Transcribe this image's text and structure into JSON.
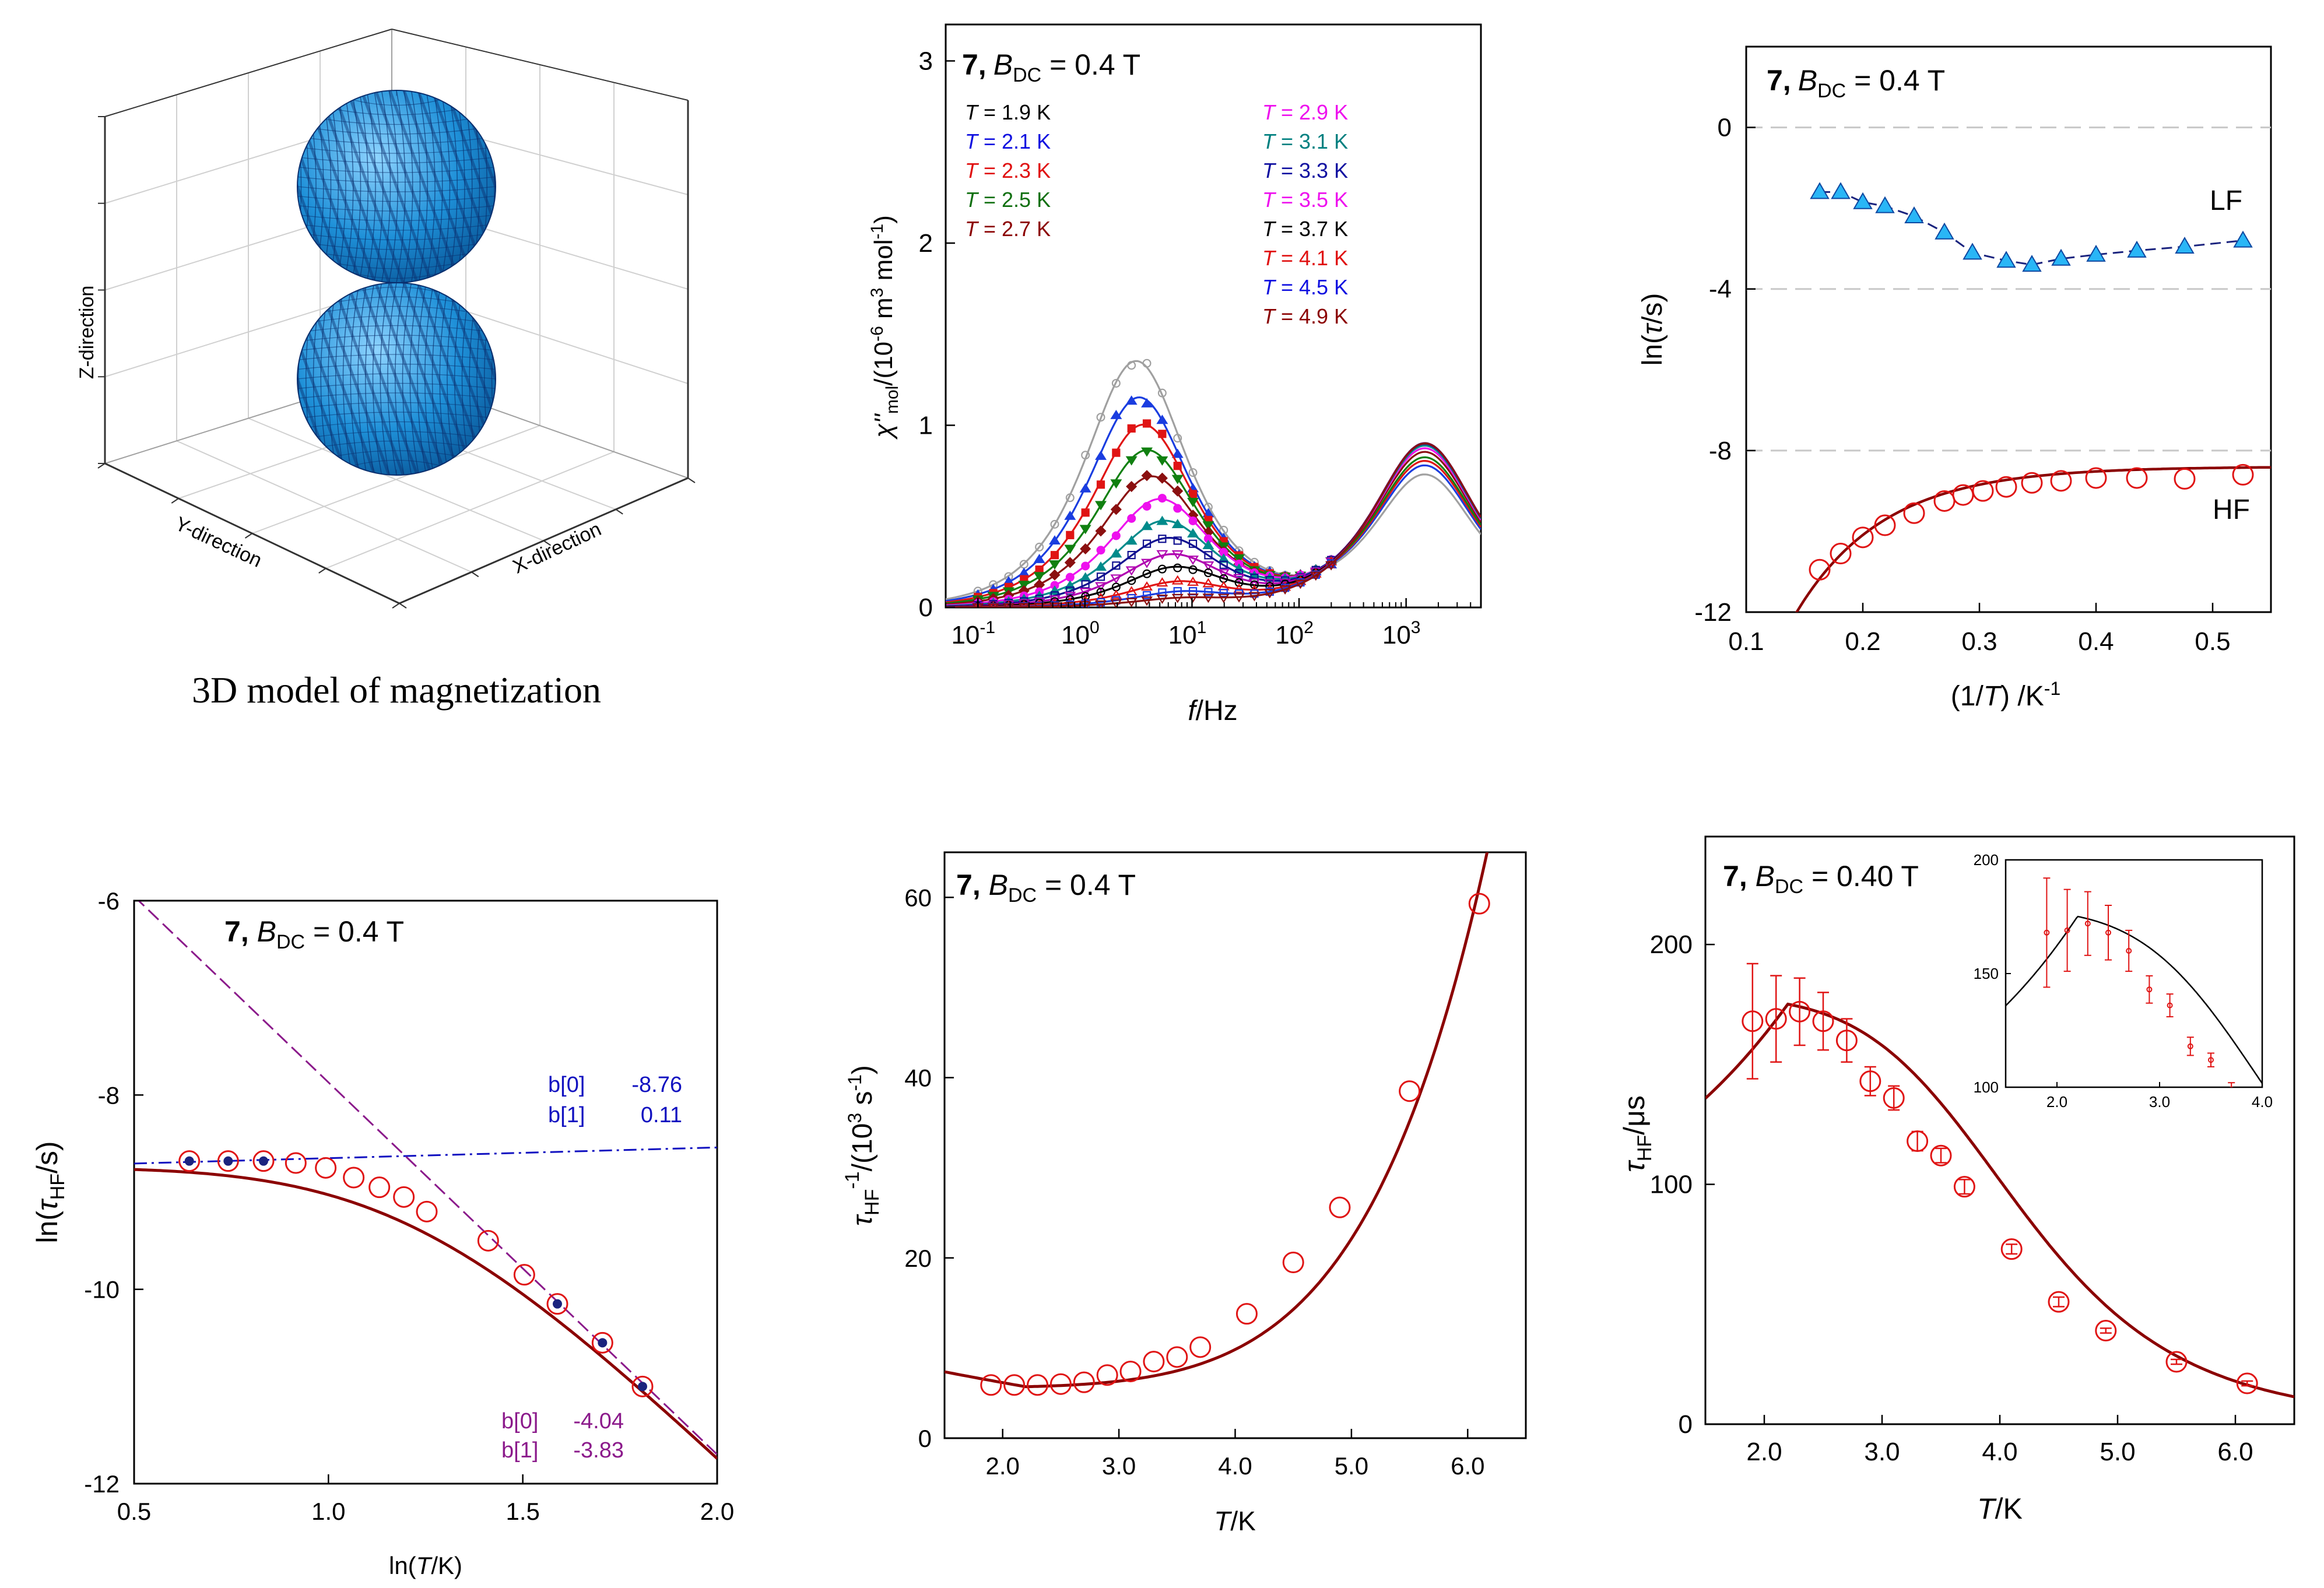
{
  "panel_3d": {
    "caption": "3D model of magnetization",
    "z_label": "Z-direction",
    "y_label": "Y-direction",
    "x_label": "X-direction",
    "surface_color": "#1e90d8",
    "mesh_color": "#0a2f6e"
  },
  "chart_data": [
    {
      "id": "chi",
      "type": "line",
      "title_num": "7,",
      "title_field": "B",
      "title_sub": "DC",
      "title_value": " = 0.4 T",
      "xlabel_italic": "f",
      "xlabel_rest": "/Hz",
      "ylabel": "χ''mol/(10⁻⁶ m³ mol⁻¹)",
      "ylabel_main": "χ''",
      "ylabel_sub": "mol",
      "ylabel_rest1": "/(10",
      "ylabel_sup1": "-6",
      "ylabel_rest2": " m",
      "ylabel_sup2": "3",
      "ylabel_rest3": " mol",
      "ylabel_sup3": "-1",
      "ylabel_rest4": ")",
      "xscale": "log",
      "xlim": [
        0.05,
        5000
      ],
      "ylim": [
        0,
        3.2
      ],
      "xticks": [
        {
          "base": "10",
          "exp": "-1"
        },
        {
          "base": "10",
          "exp": "0"
        },
        {
          "base": "10",
          "exp": "1"
        },
        {
          "base": "10",
          "exp": "2"
        },
        {
          "base": "10",
          "exp": "3"
        }
      ],
      "yticks": [
        "0",
        "1",
        "2",
        "3"
      ],
      "legend_left": [
        {
          "T": "T",
          "rest": " = 1.9 K",
          "color": "#000000"
        },
        {
          "T": "T",
          "rest": " = 2.1 K",
          "color": "#1010e0"
        },
        {
          "T": "T",
          "rest": " = 2.3 K",
          "color": "#e01010"
        },
        {
          "T": "T",
          "rest": " = 2.5 K",
          "color": "#107010"
        },
        {
          "T": "T",
          "rest": " = 2.7 K",
          "color": "#8b0000"
        }
      ],
      "legend_right": [
        {
          "T": "T",
          "rest": " = 2.9 K",
          "color": "#ee10ee"
        },
        {
          "T": "T",
          "rest": " = 3.1 K",
          "color": "#008080"
        },
        {
          "T": "T",
          "rest": " = 3.3 K",
          "color": "#1010a0"
        },
        {
          "T": "T",
          "rest": " = 3.5 K",
          "color": "#ee10ee"
        },
        {
          "T": "T",
          "rest": " = 3.7 K",
          "color": "#000000"
        },
        {
          "T": "T",
          "rest": " = 4.1 K",
          "color": "#e01010"
        },
        {
          "T": "T",
          "rest": " = 4.5 K",
          "color": "#1010e0"
        },
        {
          "T": "T",
          "rest": " = 4.9 K",
          "color": "#8b0000"
        }
      ],
      "series": [
        {
          "name": "1.9 K",
          "color": "#a0a0a0",
          "marker": "circle-open",
          "A1": 2.7,
          "f1": 3.0,
          "A2": 1.45,
          "f2": 1500
        },
        {
          "name": "2.1 K",
          "color": "#1a3de0",
          "marker": "triangle-up",
          "A1": 2.3,
          "f1": 3.2,
          "A2": 1.55,
          "f2": 1500
        },
        {
          "name": "2.3 K",
          "color": "#e01414",
          "marker": "square",
          "A1": 2.0,
          "f1": 3.5,
          "A2": 1.6,
          "f2": 1500
        },
        {
          "name": "2.5 K",
          "color": "#108010",
          "marker": "triangle-down",
          "A1": 1.72,
          "f1": 3.8,
          "A2": 1.64,
          "f2": 1500
        },
        {
          "name": "2.7 K",
          "color": "#8b1010",
          "marker": "diamond",
          "A1": 1.43,
          "f1": 4.2,
          "A2": 1.7,
          "f2": 1500
        },
        {
          "name": "2.9 K",
          "color": "#ee10ee",
          "marker": "circle",
          "A1": 1.18,
          "f1": 5.0,
          "A2": 1.74,
          "f2": 1500
        },
        {
          "name": "3.1 K",
          "color": "#008b8b",
          "marker": "triangle-up",
          "A1": 0.94,
          "f1": 5.5,
          "A2": 1.77,
          "f2": 1500
        },
        {
          "name": "3.3 K",
          "color": "#101090",
          "marker": "square-open",
          "A1": 0.75,
          "f1": 6.0,
          "A2": 1.79,
          "f2": 1500
        },
        {
          "name": "3.5 K",
          "color": "#b000b0",
          "marker": "triangle-down-open",
          "A1": 0.57,
          "f1": 6.5,
          "A2": 1.8,
          "f2": 1500
        },
        {
          "name": "3.7 K",
          "color": "#000000",
          "marker": "circle-open",
          "A1": 0.43,
          "f1": 7.0,
          "A2": 1.8,
          "f2": 1500
        },
        {
          "name": "4.1 K",
          "color": "#e01414",
          "marker": "triangle-up-open",
          "A1": 0.27,
          "f1": 7.5,
          "A2": 1.8,
          "f2": 1500
        },
        {
          "name": "4.5 K",
          "color": "#1a3de0",
          "marker": "square-open",
          "A1": 0.16,
          "f1": 8.0,
          "A2": 1.8,
          "f2": 1500
        },
        {
          "name": "4.9 K",
          "color": "#8b1010",
          "marker": "triangle-down-open",
          "A1": 0.09,
          "f1": 8.0,
          "A2": 1.8,
          "f2": 1500
        }
      ]
    },
    {
      "id": "arrh",
      "type": "scatter",
      "title_num": "7,",
      "title_field": "B",
      "title_sub": "DC",
      "title_value": " = 0.4 T",
      "xlabel": "(1/T) /K⁻¹",
      "xlabel_a": "(1/",
      "xlabel_b": "T",
      "xlabel_c": ") /K",
      "xlabel_sup": "-1",
      "ylabel_a": "ln(",
      "ylabel_b": "τ",
      "ylabel_c": "/s)",
      "xlim": [
        0.1,
        0.55
      ],
      "ylim": [
        -12,
        2
      ],
      "xticks": [
        "0.1",
        "0.2",
        "0.3",
        "0.4",
        "0.5"
      ],
      "yticks": [
        "-12",
        "-8",
        "-4",
        "0"
      ],
      "grid_y": [
        0,
        -4,
        -8
      ],
      "annot_lf": "LF",
      "annot_hf": "HF",
      "lf": {
        "color": "#29b6f6",
        "x": [
          0.163,
          0.181,
          0.2,
          0.219,
          0.244,
          0.27,
          0.294,
          0.323,
          0.345,
          0.37,
          0.4,
          0.435,
          0.476,
          0.526
        ],
        "y": [
          -1.6,
          -1.6,
          -1.85,
          -1.95,
          -2.2,
          -2.6,
          -3.1,
          -3.3,
          -3.4,
          -3.25,
          -3.15,
          -3.05,
          -2.95,
          -2.8
        ]
      },
      "hf": {
        "color": "#e01414",
        "x": [
          0.163,
          0.181,
          0.2,
          0.219,
          0.244,
          0.27,
          0.286,
          0.303,
          0.323,
          0.345,
          0.37,
          0.4,
          0.435,
          0.476,
          0.526
        ],
        "y": [
          -10.95,
          -10.55,
          -10.15,
          -9.85,
          -9.55,
          -9.25,
          -9.1,
          -9.0,
          -8.9,
          -8.8,
          -8.75,
          -8.68,
          -8.68,
          -8.7,
          -8.6
        ]
      }
    },
    {
      "id": "lnln",
      "type": "scatter",
      "title_num": "7",
      "title_field": "B",
      "title_sub": "DC",
      "title_value": " = 0.4 T",
      "xlabel_a": "ln(",
      "xlabel_b": "T",
      "xlabel_c": "/K)",
      "ylabel_a": "ln(",
      "ylabel_b": "τ",
      "ylabel_sub": "HF",
      "ylabel_c": "/s)",
      "xlim": [
        0.5,
        2.0
      ],
      "ylim": [
        -12,
        -6
      ],
      "xticks": [
        "0.5",
        "1.0",
        "1.5",
        "2.0"
      ],
      "yticks": [
        "-12",
        "-10",
        "-8",
        "-6"
      ],
      "fit1": {
        "label0": "b[0]",
        "val0": "-8.76",
        "label1": "b[1]",
        "val1": "0.11",
        "b0": -8.76,
        "b1": 0.11,
        "color": "#1010c0"
      },
      "fit2": {
        "label0": "b[0]",
        "val0": "-4.04",
        "label1": "b[1]",
        "val1": "-3.83",
        "b0": -4.04,
        "b1": -3.83,
        "color": "#8b1a8b"
      },
      "points": {
        "x": [
          0.642,
          0.742,
          0.833,
          0.916,
          0.993,
          1.065,
          1.131,
          1.194,
          1.253,
          1.411,
          1.504,
          1.589,
          1.705,
          1.808
        ],
        "y": [
          -8.68,
          -8.68,
          -8.68,
          -8.7,
          -8.75,
          -8.85,
          -8.95,
          -9.05,
          -9.2,
          -9.5,
          -9.85,
          -10.15,
          -10.55,
          -11.0
        ],
        "color": "#e01414"
      },
      "filled_idx": [
        0,
        1,
        2,
        11,
        12,
        13
      ]
    },
    {
      "id": "rate",
      "type": "scatter",
      "title_num": "7",
      "title_field": "B",
      "title_sub": "DC",
      "title_value": " = 0.4 T",
      "xlabel_a": "T",
      "xlabel_b": "/K",
      "ylabel_a": "τ",
      "ylabel_sub": "HF",
      "ylabel_sup": "-1",
      "ylabel_c": "/(10",
      "ylabel_sup2": "3",
      "ylabel_d": " s",
      "ylabel_sup3": "-1",
      "ylabel_e": ")",
      "xlim": [
        1.5,
        6.5
      ],
      "ylim": [
        0,
        65
      ],
      "xticks": [
        "2.0",
        "3.0",
        "4.0",
        "5.0",
        "6.0"
      ],
      "yticks": [
        "0",
        "20",
        "40",
        "60"
      ],
      "points": {
        "x": [
          1.9,
          2.1,
          2.3,
          2.5,
          2.7,
          2.9,
          3.1,
          3.3,
          3.5,
          3.7,
          4.1,
          4.5,
          4.9,
          5.5,
          6.1
        ],
        "y": [
          5.9,
          5.9,
          5.9,
          6.0,
          6.2,
          7.0,
          7.4,
          8.5,
          9.0,
          10.1,
          13.8,
          19.5,
          25.6,
          38.5,
          59.3
        ],
        "color": "#e01414"
      }
    },
    {
      "id": "tau",
      "type": "scatter",
      "title_num": "7",
      "title_field": "B",
      "title_sub": "DC",
      "title_value": " = 0.40 T",
      "xlabel_a": "T",
      "xlabel_b": "/K",
      "ylabel_a": "τ",
      "ylabel_sub": "HF",
      "ylabel_c": "/μs",
      "xlim": [
        1.5,
        6.5
      ],
      "ylim": [
        0,
        245
      ],
      "xticks": [
        "2.0",
        "3.0",
        "4.0",
        "5.0",
        "6.0"
      ],
      "yticks": [
        "0",
        "100",
        "200"
      ],
      "points": {
        "x": [
          1.9,
          2.1,
          2.3,
          2.5,
          2.7,
          2.9,
          3.1,
          3.3,
          3.5,
          3.7,
          4.1,
          4.5,
          4.9,
          5.5,
          6.1
        ],
        "y": [
          168,
          169,
          172,
          168,
          160,
          143,
          136,
          118,
          112,
          99,
          73,
          51,
          39,
          26,
          17
        ],
        "err": [
          24,
          18,
          14,
          12,
          9,
          6,
          5,
          4,
          3,
          3,
          2,
          2,
          1,
          1,
          1
        ],
        "color": "#e01414"
      },
      "inset": {
        "xlim": [
          1.5,
          4.0
        ],
        "ylim": [
          100,
          200
        ],
        "xticks": [
          "2.0",
          "3.0",
          "4.0"
        ],
        "yticks": [
          "100",
          "150",
          "200"
        ]
      }
    }
  ]
}
